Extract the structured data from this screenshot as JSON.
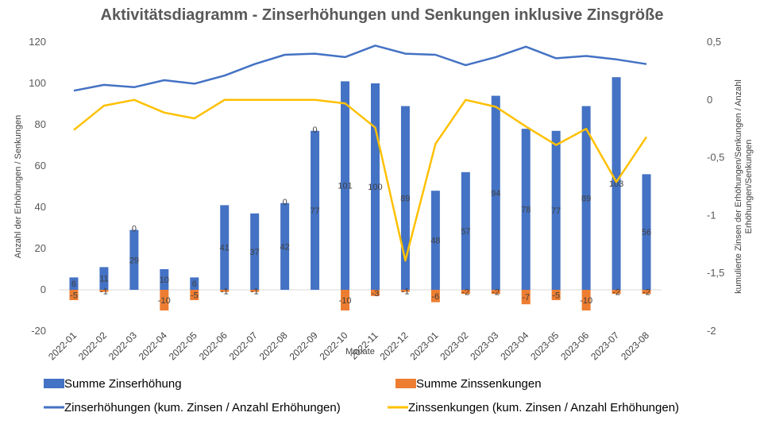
{
  "chart_data": {
    "type": "bar",
    "title": "Aktivitätsdiagramm - Zinserhöhungen und Senkungen inklusive Zinsgröße",
    "xlabel": "Monate",
    "ylabel": "Anzahl der Erhöhungen / Senkungen",
    "ylabel_right": "kumulierte Zinsen der Erhöhungen/Senkungen / Anzahl Erhöhungen/Senkungen",
    "ylim": [
      -20,
      120
    ],
    "yticks": [
      -20,
      0,
      20,
      40,
      60,
      80,
      100,
      120
    ],
    "ylim_right": [
      -2,
      0.5
    ],
    "yticks_right": [
      -2,
      -1.5,
      -1,
      -0.5,
      0,
      0.5
    ],
    "yticks_right_labels": [
      "-2",
      "-1,5",
      "-1",
      "-0,5",
      "0",
      "0,5"
    ],
    "grid": false,
    "legend_position": "bottom",
    "categories": [
      "2022-01",
      "2022-02",
      "2022-03",
      "2022-04",
      "2022-05",
      "2022-06",
      "2022-07",
      "2022-08",
      "2022-09",
      "2022-10",
      "2022-11",
      "2022-12",
      "2023-01",
      "2023-02",
      "2023-03",
      "2023-04",
      "2023-05",
      "2023-06",
      "2023-07",
      "2023-08"
    ],
    "series": [
      {
        "name": "Summe Zinserhöhung",
        "axis": "left",
        "kind": "bar",
        "color": "#4472C4",
        "values": [
          6,
          11,
          29,
          10,
          6,
          41,
          37,
          42,
          77,
          101,
          100,
          89,
          48,
          57,
          94,
          78,
          77,
          89,
          103,
          56
        ],
        "labels": [
          "6",
          "11",
          "29",
          "10",
          "6",
          "41",
          "37",
          "42",
          "77",
          "101",
          "100",
          "89",
          "48",
          "57",
          "94",
          "78",
          "77",
          "89",
          "103",
          "56"
        ]
      },
      {
        "name": "Summe Zinssenkungen",
        "axis": "left",
        "kind": "bar",
        "color": "#ED7D31",
        "values": [
          -5,
          -1,
          0,
          -10,
          -5,
          -1,
          -1,
          0,
          0,
          -10,
          -3,
          -1,
          -6,
          -2,
          -2,
          -7,
          -5,
          -10,
          -2,
          -2
        ],
        "labels": [
          "-5",
          "-1",
          "0",
          "-10",
          "-5",
          "-1",
          "-1",
          "0",
          "0",
          "-10",
          "-3",
          "-1",
          "-6",
          "-2",
          "-2",
          "-7",
          "-5",
          "-10",
          "-2",
          "-2"
        ]
      },
      {
        "name": "Zinserhöhungen (kum. Zinsen / Anzahl Erhöhungen)",
        "axis": "right",
        "kind": "line",
        "color": "#4472C4",
        "values": [
          0.08,
          0.13,
          0.11,
          0.17,
          0.14,
          0.21,
          0.31,
          0.39,
          0.4,
          0.37,
          0.47,
          0.4,
          0.39,
          0.3,
          0.37,
          0.46,
          0.36,
          0.38,
          0.35,
          0.31
        ]
      },
      {
        "name": "Zinssenkungen (kum. Zinsen / Anzahl Erhöhungen)",
        "axis": "right",
        "kind": "line",
        "color": "#FFC000",
        "values": [
          -0.26,
          -0.05,
          0.0,
          -0.11,
          -0.16,
          0.0,
          0.0,
          0.0,
          0.0,
          -0.03,
          -0.24,
          -1.39,
          -0.38,
          0.0,
          -0.06,
          -0.23,
          -0.39,
          -0.25,
          -0.71,
          -0.32
        ]
      }
    ]
  }
}
